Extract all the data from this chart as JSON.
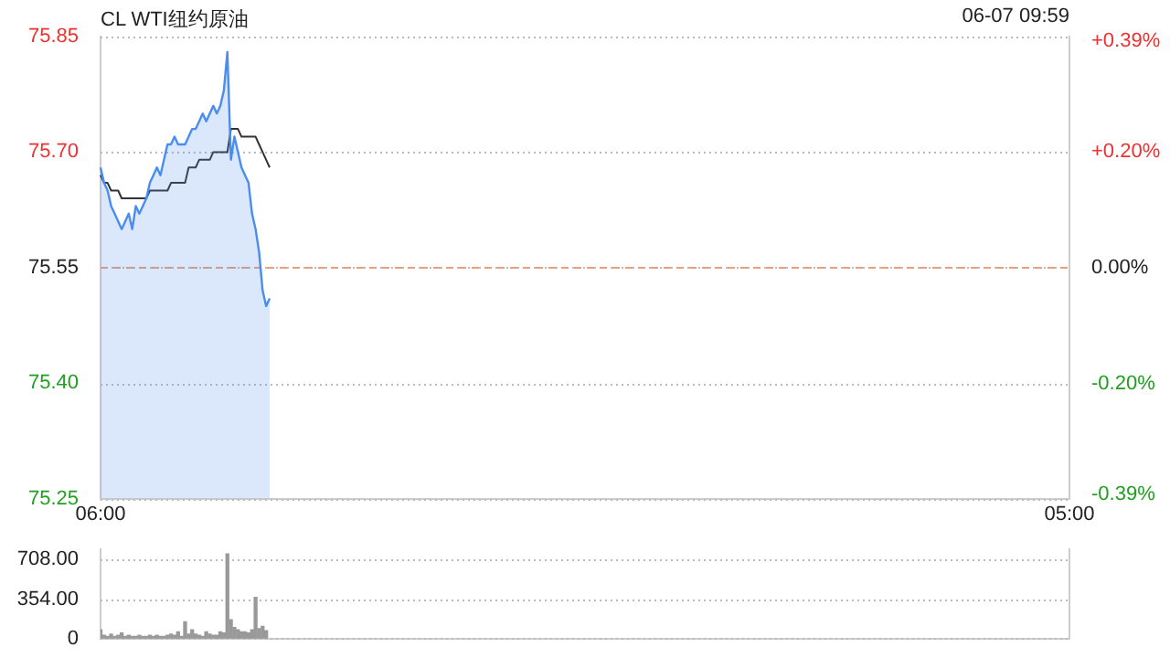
{
  "chart_data": [
    {
      "type": "line",
      "title": "CL WTI纽约原油",
      "annotations": [
        "06-07 09:59"
      ],
      "categories": [
        "06:00",
        null,
        null,
        null,
        null,
        null,
        null,
        null,
        null,
        null,
        null,
        null,
        null,
        null,
        null,
        null,
        null,
        null,
        null,
        null,
        null,
        null,
        null,
        null,
        null,
        null,
        null,
        null,
        null,
        null,
        null,
        null,
        null,
        null,
        null,
        null,
        null,
        null,
        null,
        null,
        null,
        null,
        null,
        null,
        null,
        null,
        null,
        null,
        null,
        null,
        null,
        null,
        null,
        null,
        null,
        null,
        null,
        null,
        null,
        null,
        null,
        null,
        null,
        null,
        null,
        null,
        null,
        null,
        null,
        null,
        null,
        null,
        null,
        null,
        null,
        null,
        null,
        null,
        null,
        null,
        null,
        null,
        null,
        null,
        null,
        null,
        null,
        null,
        null,
        null,
        null,
        null,
        null,
        null,
        null,
        null,
        null,
        null,
        null,
        null,
        null,
        null,
        null,
        null,
        null,
        null,
        null,
        null,
        null,
        null,
        null,
        null,
        null,
        null,
        null,
        null,
        null,
        null,
        null,
        null,
        null,
        null,
        null,
        null,
        null,
        null,
        null,
        null,
        null,
        null,
        null,
        null,
        null,
        null,
        null,
        null,
        null,
        null,
        null,
        null,
        null,
        null,
        null,
        null,
        null,
        null,
        null,
        null,
        null,
        null,
        null,
        null,
        null,
        null,
        null,
        null,
        null,
        null,
        null,
        null,
        null,
        null,
        null,
        null,
        null,
        null,
        null,
        null,
        null,
        null,
        null,
        null,
        null,
        null,
        null,
        null,
        null,
        null,
        null,
        null,
        null,
        null,
        null,
        null,
        null,
        null,
        null,
        null,
        null,
        null,
        null,
        null,
        null,
        null,
        null,
        null,
        null,
        null,
        null,
        null,
        null,
        null,
        null,
        null,
        null,
        null,
        null,
        null,
        null,
        null,
        null,
        null,
        null,
        null,
        null,
        null,
        null,
        null,
        null,
        null,
        null,
        null,
        null,
        null,
        null,
        null,
        null,
        null,
        null,
        null,
        null,
        null,
        null,
        null,
        null,
        null,
        null,
        null,
        null,
        null,
        null,
        null,
        null,
        null,
        null,
        null,
        null,
        null,
        null,
        null,
        null,
        null,
        null,
        null,
        null,
        null,
        null,
        null,
        null,
        null,
        null,
        null,
        null,
        null,
        null,
        null,
        null,
        null,
        null,
        null,
        null,
        null,
        null,
        null,
        null,
        "05:00"
      ],
      "ylim": [
        75.25,
        75.85
      ],
      "yticks": [
        {
          "value": 75.25,
          "label": "75.25"
        },
        {
          "value": 75.4,
          "label": "75.40"
        },
        {
          "value": 75.55,
          "label": "75.55"
        },
        {
          "value": 75.7,
          "label": "75.70"
        },
        {
          "value": 75.85,
          "label": "75.85"
        }
      ],
      "y2lim": [
        -0.397,
        0.397
      ],
      "y2ticks": [
        {
          "value": -0.39,
          "label": "-0.39%"
        },
        {
          "value": -0.2,
          "label": "-0.20%"
        },
        {
          "value": 0,
          "label": "0.00%"
        },
        {
          "value": 0.2,
          "label": "+0.20%"
        },
        {
          "value": 0.39,
          "label": "+0.39%"
        }
      ],
      "grid": "y",
      "legend": false,
      "marker": "none",
      "ref_lines": [
        {
          "axis": "y",
          "value": 75.55,
          "color": "#e8a07a",
          "line_style": "dashed"
        }
      ],
      "series": [
        {
          "type": "area",
          "color": "#4a8cf0",
          "values": [
            75.68,
            75.66,
            75.65,
            75.63,
            75.62,
            75.61,
            75.6,
            75.61,
            75.62,
            75.6,
            75.63,
            75.62,
            75.63,
            75.64,
            75.66,
            75.67,
            75.68,
            75.67,
            75.69,
            75.71,
            75.71,
            75.72,
            75.71,
            75.71,
            75.71,
            75.72,
            75.73,
            75.73,
            75.74,
            75.75,
            75.74,
            75.75,
            75.76,
            75.75,
            75.76,
            75.78,
            75.83,
            75.69,
            75.72,
            75.7,
            75.68,
            75.67,
            75.66,
            75.62,
            75.6,
            75.57,
            75.52,
            75.5,
            75.51,
            null,
            null,
            null,
            null,
            null,
            null,
            null,
            null,
            null,
            null,
            null,
            null,
            null,
            null,
            null,
            null,
            null,
            null,
            null,
            null,
            null,
            null,
            null,
            null,
            null,
            null,
            null,
            null,
            null,
            null,
            null,
            null,
            null,
            null,
            null,
            null,
            null,
            null,
            null,
            null,
            null,
            null,
            null,
            null,
            null,
            null,
            null,
            null,
            null,
            null,
            null,
            null,
            null,
            null,
            null,
            null,
            null,
            null,
            null,
            null,
            null,
            null,
            null,
            null,
            null,
            null,
            null,
            null,
            null,
            null,
            null,
            null,
            null,
            null,
            null,
            null,
            null,
            null,
            null,
            null,
            null,
            null,
            null,
            null,
            null,
            null,
            null,
            null,
            null,
            null,
            null,
            null,
            null,
            null,
            null,
            null,
            null,
            null,
            null,
            null,
            null,
            null,
            null,
            null,
            null,
            null,
            null,
            null,
            null,
            null,
            null,
            null,
            null,
            null,
            null,
            null,
            null,
            null,
            null,
            null,
            null,
            null,
            null,
            null,
            null,
            null,
            null,
            null,
            null,
            null,
            null,
            null,
            null,
            null,
            null,
            null,
            null,
            null,
            null,
            null,
            null,
            null,
            null,
            null,
            null,
            null,
            null,
            null,
            null,
            null,
            null,
            null,
            null,
            null,
            null,
            null,
            null,
            null,
            null,
            null,
            null,
            null,
            null,
            null,
            null,
            null,
            null,
            null,
            null,
            null,
            null,
            null,
            null,
            null,
            null,
            null,
            null,
            null,
            null,
            null,
            null,
            null,
            null,
            null,
            null,
            null,
            null,
            null,
            null,
            null,
            null,
            null,
            null,
            null,
            null,
            null,
            null,
            null,
            null,
            null,
            null,
            null,
            null,
            null,
            null,
            null,
            null,
            null,
            null,
            null,
            null,
            null,
            null,
            null,
            null,
            null,
            null,
            null,
            null,
            null,
            null,
            null,
            null,
            null,
            null,
            null,
            null
          ]
        },
        {
          "color": "#333333",
          "values": [
            75.67,
            75.66,
            75.66,
            75.65,
            75.65,
            75.65,
            75.64,
            75.64,
            75.64,
            75.64,
            75.64,
            75.64,
            75.64,
            75.64,
            75.65,
            75.65,
            75.65,
            75.65,
            75.65,
            75.65,
            75.66,
            75.66,
            75.66,
            75.66,
            75.66,
            75.68,
            75.68,
            75.68,
            75.69,
            75.69,
            75.69,
            75.69,
            75.7,
            75.7,
            75.7,
            75.7,
            75.7,
            75.73,
            75.73,
            75.73,
            75.72,
            75.72,
            75.72,
            75.72,
            75.72,
            75.71,
            75.7,
            75.69,
            75.68,
            null,
            null,
            null,
            null,
            null,
            null,
            null,
            null,
            null,
            null,
            null,
            null,
            null,
            null,
            null,
            null,
            null,
            null,
            null,
            null,
            null,
            null,
            null,
            null,
            null,
            null,
            null,
            null,
            null,
            null,
            null,
            null,
            null,
            null,
            null,
            null,
            null,
            null,
            null,
            null,
            null,
            null,
            null,
            null,
            null,
            null,
            null,
            null,
            null,
            null,
            null,
            null,
            null,
            null,
            null,
            null,
            null,
            null,
            null,
            null,
            null,
            null,
            null,
            null,
            null,
            null,
            null,
            null,
            null,
            null,
            null,
            null,
            null,
            null,
            null,
            null,
            null,
            null,
            null,
            null,
            null,
            null,
            null,
            null,
            null,
            null,
            null,
            null,
            null,
            null,
            null,
            null,
            null,
            null,
            null,
            null,
            null,
            null,
            null,
            null,
            null,
            null,
            null,
            null,
            null,
            null,
            null,
            null,
            null,
            null,
            null,
            null,
            null,
            null,
            null,
            null,
            null,
            null,
            null,
            null,
            null,
            null,
            null,
            null,
            null,
            null,
            null,
            null,
            null,
            null,
            null,
            null,
            null,
            null,
            null,
            null,
            null,
            null,
            null,
            null,
            null,
            null,
            null,
            null,
            null,
            null,
            null,
            null,
            null,
            null,
            null,
            null,
            null,
            null,
            null,
            null,
            null,
            null,
            null,
            null,
            null,
            null,
            null,
            null,
            null,
            null,
            null,
            null,
            null,
            null,
            null,
            null,
            null,
            null,
            null,
            null,
            null,
            null,
            null,
            null,
            null,
            null,
            null,
            null,
            null,
            null,
            null,
            null,
            null,
            null,
            null,
            null,
            null,
            null,
            null,
            null,
            null,
            null,
            null,
            null,
            null,
            null,
            null,
            null,
            null,
            null,
            null,
            null,
            null,
            null,
            null,
            null,
            null,
            null,
            null,
            null,
            null,
            null,
            null,
            null,
            null,
            null,
            null,
            null,
            null,
            null,
            null
          ]
        }
      ]
    },
    {
      "type": "bar",
      "ylim": [
        0,
        800
      ],
      "yticks": [
        0,
        {
          "value": 354,
          "label": "354.00"
        },
        {
          "value": 708,
          "label": "708.00"
        }
      ],
      "grid": "y",
      "legend": false,
      "tick_labels": "y",
      "categories": [
        null,
        null,
        null,
        null,
        null,
        null,
        null,
        null,
        null,
        null,
        null,
        null,
        null,
        null,
        null,
        null,
        null,
        null,
        null,
        null,
        null,
        null,
        null,
        null,
        null,
        null,
        null,
        null,
        null,
        null,
        null,
        null,
        null,
        null,
        null,
        null,
        null,
        null,
        null,
        null,
        null,
        null,
        null,
        null,
        null,
        null,
        null,
        null,
        null,
        null,
        null,
        null,
        null,
        null,
        null,
        null,
        null,
        null,
        null,
        null,
        null,
        null,
        null,
        null,
        null,
        null,
        null,
        null,
        null,
        null,
        null,
        null,
        null,
        null,
        null,
        null,
        null,
        null,
        null,
        null,
        null,
        null,
        null,
        null,
        null,
        null,
        null,
        null,
        null,
        null,
        null,
        null,
        null,
        null,
        null,
        null,
        null,
        null,
        null,
        null,
        null,
        null,
        null,
        null,
        null,
        null,
        null,
        null,
        null,
        null,
        null,
        null,
        null,
        null,
        null,
        null,
        null,
        null,
        null,
        null,
        null,
        null,
        null,
        null,
        null,
        null,
        null,
        null,
        null,
        null,
        null,
        null,
        null,
        null,
        null,
        null,
        null,
        null,
        null,
        null,
        null,
        null,
        null,
        null,
        null,
        null,
        null,
        null,
        null,
        null,
        null,
        null,
        null,
        null,
        null,
        null,
        null,
        null,
        null,
        null,
        null,
        null,
        null,
        null,
        null,
        null,
        null,
        null,
        null,
        null,
        null,
        null,
        null,
        null,
        null,
        null,
        null,
        null,
        null,
        null,
        null,
        null,
        null,
        null,
        null,
        null,
        null,
        null,
        null,
        null,
        null,
        null,
        null,
        null,
        null,
        null,
        null,
        null,
        null,
        null,
        null,
        null,
        null,
        null,
        null,
        null,
        null,
        null,
        null,
        null,
        null,
        null,
        null,
        null,
        null,
        null,
        null,
        null,
        null,
        null,
        null,
        null,
        null,
        null,
        null,
        null,
        null,
        null,
        null,
        null,
        null,
        null,
        null,
        null,
        null,
        null,
        null,
        null,
        null,
        null,
        null,
        null,
        null,
        null,
        null,
        null,
        null,
        null,
        null,
        null,
        null,
        null,
        null,
        null,
        null,
        null,
        null,
        null,
        null,
        null,
        null,
        null,
        null,
        null,
        null,
        null,
        null,
        null,
        null,
        null,
        null,
        null,
        null,
        null,
        null,
        null
      ],
      "series": [
        {
          "color": "#999999",
          "values": [
            80,
            30,
            20,
            40,
            20,
            30,
            50,
            20,
            30,
            20,
            20,
            30,
            20,
            20,
            30,
            20,
            30,
            20,
            20,
            30,
            40,
            30,
            60,
            20,
            150,
            40,
            80,
            40,
            30,
            20,
            60,
            40,
            30,
            30,
            60,
            50,
            760,
            170,
            100,
            80,
            60,
            60,
            50,
            80,
            370,
            90,
            110,
            70,
            null,
            null,
            null,
            null,
            null,
            null,
            null,
            null,
            null,
            null,
            null,
            null,
            null,
            null,
            null,
            null,
            null,
            null,
            null,
            null,
            null,
            null,
            null,
            null,
            null,
            null,
            null,
            null,
            null,
            null,
            null,
            null,
            null,
            null,
            null,
            null,
            null,
            null,
            null,
            null,
            null,
            null,
            null,
            null,
            null,
            null,
            null,
            null,
            null,
            null,
            null,
            null,
            null,
            null,
            null,
            null,
            null,
            null,
            null,
            null,
            null,
            null,
            null,
            null,
            null,
            null,
            null,
            null,
            null,
            null,
            null,
            null,
            null,
            null,
            null,
            null,
            null,
            null,
            null,
            null,
            null,
            null,
            null,
            null,
            null,
            null,
            null,
            null,
            null,
            null,
            null,
            null,
            null,
            null,
            null,
            null,
            null,
            null,
            null,
            null,
            null,
            null,
            null,
            null,
            null,
            null,
            null,
            null,
            null,
            null,
            null,
            null,
            null,
            null,
            null,
            null,
            null,
            null,
            null,
            null,
            null,
            null,
            null,
            null,
            null,
            null,
            null,
            null,
            null,
            null,
            null,
            null,
            null,
            null,
            null,
            null,
            null,
            null,
            null,
            null,
            null,
            null,
            null,
            null,
            null,
            null,
            null,
            null,
            null,
            null,
            null,
            null,
            null,
            null,
            null,
            null,
            null,
            null,
            null,
            null,
            null,
            null,
            null,
            null,
            null,
            null,
            null,
            null,
            null,
            null,
            null,
            null,
            null,
            null,
            null,
            null,
            null,
            null,
            null,
            null,
            null,
            null,
            null,
            null,
            null,
            null,
            null,
            null,
            null,
            null,
            null,
            null,
            null,
            null,
            null,
            null,
            null,
            null,
            null,
            null,
            null,
            null,
            null,
            null,
            null,
            null,
            null,
            null,
            null,
            null,
            null,
            null,
            null,
            null,
            null,
            null,
            null,
            null,
            null,
            null,
            null,
            null,
            null,
            null,
            null,
            null,
            null,
            null
          ]
        }
      ]
    }
  ]
}
